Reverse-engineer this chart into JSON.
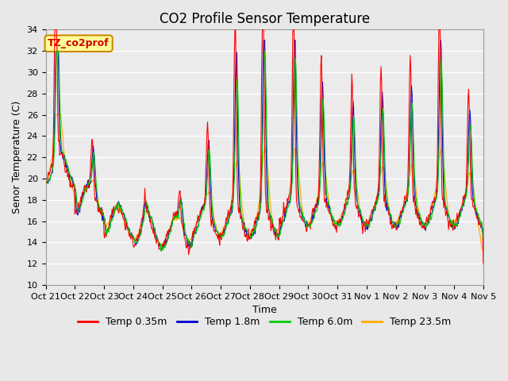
{
  "title": "CO2 Profile Sensor Temperature",
  "ylabel": "Senor Temperature (C)",
  "xlabel": "Time",
  "ylim": [
    10,
    34
  ],
  "yticks": [
    10,
    12,
    14,
    16,
    18,
    20,
    22,
    24,
    26,
    28,
    30,
    32,
    34
  ],
  "xtick_labels": [
    "Oct 21",
    "Oct 22",
    "Oct 23",
    "Oct 24",
    "Oct 25",
    "Oct 26",
    "Oct 27",
    "Oct 28",
    "Oct 29",
    "Oct 30",
    "Oct 31",
    "Nov 1",
    "Nov 2",
    "Nov 3",
    "Nov 4",
    "Nov 5"
  ],
  "legend_labels": [
    "Temp 0.35m",
    "Temp 1.8m",
    "Temp 6.0m",
    "Temp 23.5m"
  ],
  "legend_colors": [
    "#ff0000",
    "#0000cc",
    "#00cc00",
    "#ffaa00"
  ],
  "annotation_text": "TZ_co2prof",
  "annotation_bg": "#ffff99",
  "annotation_border": "#cc8800",
  "bg_color": "#e8e8e8",
  "plot_bg": "#ebebeb",
  "grid_color": "#ffffff",
  "title_fontsize": 12,
  "label_fontsize": 9,
  "tick_fontsize": 8
}
